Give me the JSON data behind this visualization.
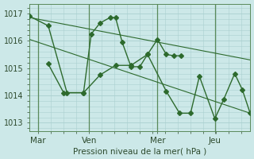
{
  "background_color": "#cce8e8",
  "grid_color": "#aad0d0",
  "line_color": "#2d6a2d",
  "title": "Pression niveau de la mer( hPa )",
  "ylim": [
    1012.7,
    1017.35
  ],
  "xlim": [
    0.0,
    1.0
  ],
  "yticks": [
    1013,
    1014,
    1015,
    1016,
    1017
  ],
  "ytick_labels": [
    "1013",
    "1014",
    "1015",
    "1016",
    "1017"
  ],
  "xtick_positions": [
    0.04,
    0.27,
    0.58,
    0.84
  ],
  "xtick_labels": [
    "Mar",
    "Ven",
    "Mer",
    "Jeu"
  ],
  "vline_positions": [
    0.04,
    0.27,
    0.58,
    0.84
  ],
  "series1_x": [
    0.0,
    0.085,
    0.17,
    0.245,
    0.28,
    0.32,
    0.365,
    0.39,
    0.42,
    0.46,
    0.5,
    0.535,
    0.58,
    0.62,
    0.655,
    0.685
  ],
  "series1_y": [
    1016.9,
    1016.55,
    1014.1,
    1014.1,
    1016.25,
    1016.65,
    1016.85,
    1016.85,
    1015.95,
    1015.05,
    1015.05,
    1015.5,
    1016.05,
    1015.5,
    1015.45,
    1015.45
  ],
  "series2_x": [
    0.085,
    0.155,
    0.245,
    0.32,
    0.39,
    0.46,
    0.535,
    0.62,
    0.68,
    0.73,
    0.77,
    0.84,
    0.88,
    0.93,
    0.965,
    1.0
  ],
  "series2_y": [
    1015.15,
    1014.1,
    1014.1,
    1014.75,
    1015.1,
    1015.1,
    1015.5,
    1014.15,
    1013.35,
    1013.35,
    1014.7,
    1013.15,
    1013.85,
    1014.8,
    1014.2,
    1013.35
  ],
  "trend1_x": [
    0.0,
    1.0
  ],
  "trend1_y": [
    1016.85,
    1015.3
  ],
  "trend2_x": [
    0.0,
    1.0
  ],
  "trend2_y": [
    1016.05,
    1013.35
  ]
}
